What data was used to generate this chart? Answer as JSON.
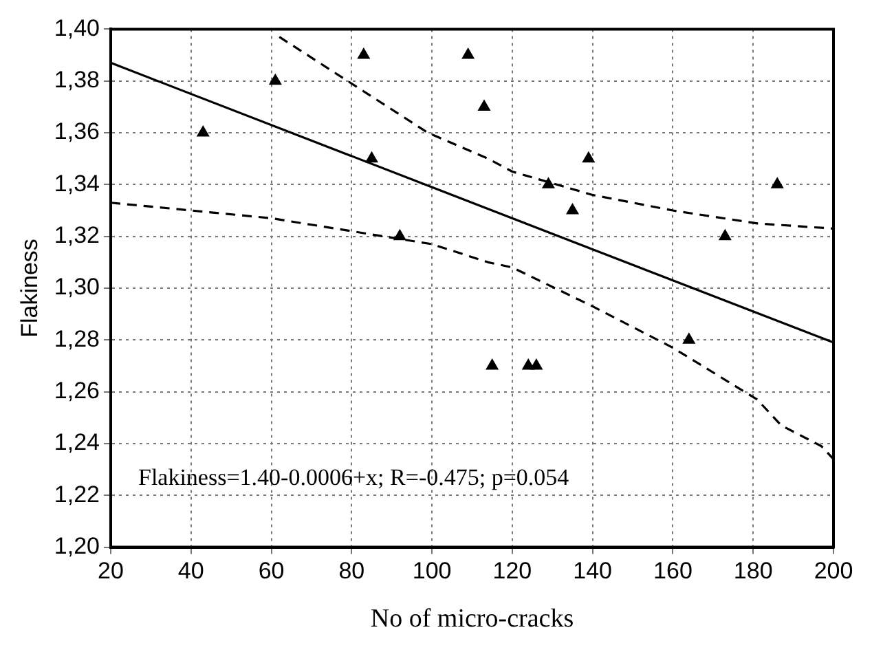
{
  "chart_data": {
    "type": "scatter",
    "xlabel": "No of micro-cracks",
    "ylabel": "Flakiness",
    "xlim": [
      20,
      200
    ],
    "xticks": [
      20,
      40,
      60,
      80,
      100,
      120,
      140,
      160,
      180,
      200
    ],
    "ylim": [
      1.2,
      1.4
    ],
    "yticks": [
      {
        "value": 1.2,
        "label": "1,20"
      },
      {
        "value": 1.22,
        "label": "1,22"
      },
      {
        "value": 1.24,
        "label": "1,24"
      },
      {
        "value": 1.26,
        "label": "1,26"
      },
      {
        "value": 1.28,
        "label": "1,28"
      },
      {
        "value": 1.3,
        "label": "1,30"
      },
      {
        "value": 1.32,
        "label": "1,32"
      },
      {
        "value": 1.34,
        "label": "1,34"
      },
      {
        "value": 1.36,
        "label": "1,36"
      },
      {
        "value": 1.38,
        "label": "1,38"
      },
      {
        "value": 1.4,
        "label": "1,40"
      }
    ],
    "grid": true,
    "annotations": [
      "Flakiness=1.40-0.0006+x; R=-0.475; p=0.054"
    ],
    "series": [
      {
        "marker": "triangle",
        "color": "#000000",
        "x": [
          43,
          61,
          83,
          85,
          92,
          109,
          113,
          115,
          124,
          126,
          129,
          135,
          139,
          164,
          173,
          186
        ],
        "values": [
          1.36,
          1.38,
          1.39,
          1.35,
          1.32,
          1.39,
          1.37,
          1.27,
          1.27,
          1.27,
          1.34,
          1.33,
          1.35,
          1.28,
          1.32,
          1.34
        ]
      },
      {
        "type": "line",
        "line_style": "solid",
        "color": "#000000",
        "x": [
          20,
          200
        ],
        "values": [
          1.387,
          1.279
        ]
      },
      {
        "type": "line",
        "line_style": "dashed",
        "color": "#000000",
        "x": [
          62,
          80,
          99,
          114,
          120,
          140,
          160,
          181,
          200
        ],
        "values": [
          1.397,
          1.379,
          1.36,
          1.35,
          1.345,
          1.336,
          1.33,
          1.325,
          1.323
        ]
      },
      {
        "type": "line",
        "line_style": "dashed",
        "color": "#000000",
        "x": [
          20,
          40,
          60,
          80,
          100,
          114,
          120,
          140,
          160,
          181,
          187,
          197,
          200
        ],
        "values": [
          1.333,
          1.33,
          1.327,
          1.322,
          1.317,
          1.31,
          1.308,
          1.293,
          1.277,
          1.257,
          1.247,
          1.239,
          1.234
        ]
      }
    ]
  }
}
